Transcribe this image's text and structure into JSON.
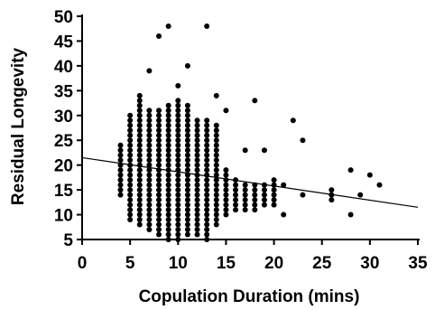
{
  "chart_data": {
    "type": "scatter",
    "xlabel": "Copulation Duration (mins)",
    "ylabel": "Residual Longevity",
    "xlim": [
      0,
      35
    ],
    "ylim": [
      5,
      50
    ],
    "x_ticks": [
      0,
      5,
      10,
      15,
      20,
      25,
      30,
      35
    ],
    "y_ticks": [
      5,
      10,
      15,
      20,
      25,
      30,
      35,
      40,
      45,
      50
    ],
    "grid": false,
    "legend": "none",
    "marker_color": "#000000",
    "columns": [
      {
        "x": 4,
        "y_min": 14,
        "y_max": 24,
        "step": 1
      },
      {
        "x": 5,
        "y_min": 9,
        "y_max": 30,
        "step": 1
      },
      {
        "x": 6,
        "y_min": 8,
        "y_max": 34,
        "step": 1
      },
      {
        "x": 7,
        "y_min": 7,
        "y_max": 31,
        "step": 1
      },
      {
        "x": 8,
        "y_min": 6,
        "y_max": 31,
        "step": 1
      },
      {
        "x": 9,
        "y_min": 5,
        "y_max": 32,
        "step": 1
      },
      {
        "x": 10,
        "y_min": 5,
        "y_max": 33,
        "step": 1
      },
      {
        "x": 11,
        "y_min": 6,
        "y_max": 32,
        "step": 1
      },
      {
        "x": 12,
        "y_min": 6,
        "y_max": 29,
        "step": 1
      },
      {
        "x": 13,
        "y_min": 5,
        "y_max": 29,
        "step": 1
      },
      {
        "x": 14,
        "y_min": 8,
        "y_max": 28,
        "step": 1
      },
      {
        "x": 15,
        "y_min": 10,
        "y_max": 19,
        "step": 1
      },
      {
        "x": 16,
        "y_min": 11,
        "y_max": 17,
        "step": 1
      },
      {
        "x": 17,
        "y_min": 11,
        "y_max": 16,
        "step": 1
      },
      {
        "x": 18,
        "y_min": 11,
        "y_max": 16,
        "step": 1
      },
      {
        "x": 19,
        "y_min": 12,
        "y_max": 16,
        "step": 1
      },
      {
        "x": 20,
        "y_min": 12,
        "y_max": 17,
        "step": 1
      }
    ],
    "points": [
      {
        "x": 7,
        "y": 39
      },
      {
        "x": 8,
        "y": 46
      },
      {
        "x": 9,
        "y": 48
      },
      {
        "x": 10,
        "y": 36
      },
      {
        "x": 11,
        "y": 40
      },
      {
        "x": 13,
        "y": 48
      },
      {
        "x": 14,
        "y": 34
      },
      {
        "x": 15,
        "y": 31
      },
      {
        "x": 18,
        "y": 33
      },
      {
        "x": 19,
        "y": 23
      },
      {
        "x": 17,
        "y": 23
      },
      {
        "x": 22,
        "y": 29
      },
      {
        "x": 23,
        "y": 25
      },
      {
        "x": 21,
        "y": 10
      },
      {
        "x": 21,
        "y": 16
      },
      {
        "x": 23,
        "y": 14
      },
      {
        "x": 26,
        "y": 13
      },
      {
        "x": 26,
        "y": 14
      },
      {
        "x": 26,
        "y": 15
      },
      {
        "x": 28,
        "y": 10
      },
      {
        "x": 28,
        "y": 19
      },
      {
        "x": 29,
        "y": 14
      },
      {
        "x": 30,
        "y": 18
      },
      {
        "x": 31,
        "y": 16
      }
    ],
    "trend_line": {
      "x": [
        0,
        35
      ],
      "y": [
        21.5,
        11.5
      ]
    }
  }
}
